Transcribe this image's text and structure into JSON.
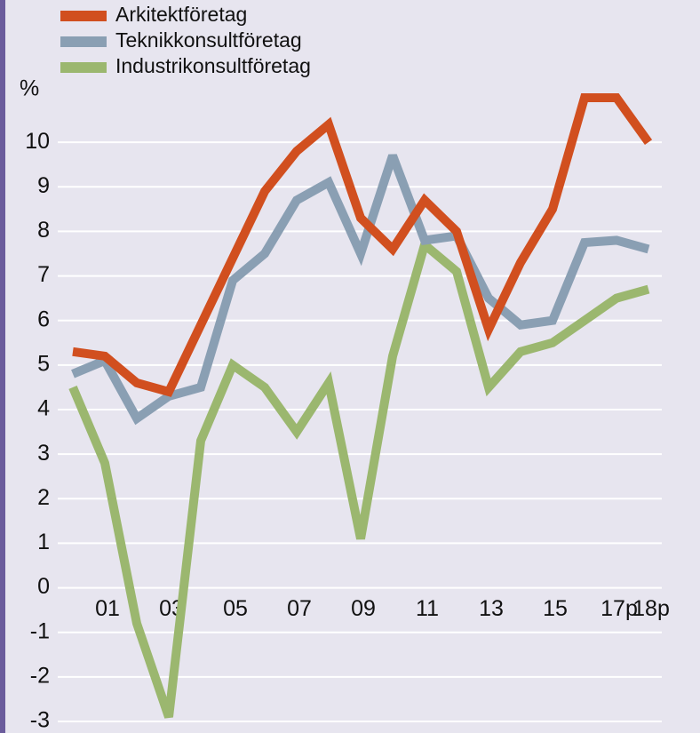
{
  "chart_data": {
    "type": "line",
    "y_label": "%",
    "categories": [
      null,
      "01",
      null,
      "03",
      null,
      "05",
      null,
      "07",
      null,
      "09",
      null,
      "11",
      null,
      "13",
      null,
      "15",
      null,
      "17p",
      "18p"
    ],
    "series": [
      {
        "name": "Arkitektföretag",
        "color": "#d14f1f",
        "values": [
          5.3,
          5.2,
          4.6,
          4.4,
          5.9,
          7.4,
          8.9,
          9.8,
          10.4,
          8.3,
          7.6,
          8.7,
          8.0,
          5.8,
          7.3,
          8.5,
          11.0,
          11.0,
          10.0
        ]
      },
      {
        "name": "Teknikkonsultföretag",
        "color": "#8a9fb3",
        "values": [
          4.8,
          5.1,
          3.8,
          4.3,
          4.5,
          6.9,
          7.5,
          8.7,
          9.1,
          7.5,
          9.7,
          7.8,
          7.9,
          6.5,
          5.9,
          6.0,
          7.75,
          7.8,
          7.6
        ]
      },
      {
        "name": "Industrikonsultföretag",
        "color": "#9bb76f",
        "values": [
          4.5,
          2.8,
          -0.8,
          -2.9,
          3.3,
          5.0,
          4.5,
          3.5,
          4.6,
          1.1,
          5.2,
          7.7,
          7.1,
          4.5,
          5.3,
          5.5,
          6.0,
          6.5,
          6.7
        ]
      }
    ],
    "ylim": [
      -3,
      11
    ],
    "yticks": [
      -3,
      -2,
      -1,
      0,
      1,
      2,
      3,
      4,
      5,
      6,
      7,
      8,
      9,
      10
    ],
    "grid": true
  }
}
